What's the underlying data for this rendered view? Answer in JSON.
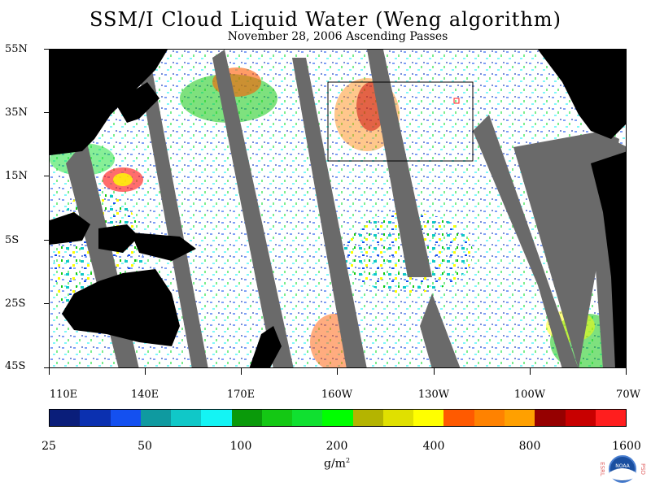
{
  "title": "SSM/I Cloud Liquid Water (Weng algorithm)",
  "subtitle": "November 28, 2006  Ascending Passes",
  "lat_labels": [
    "55N",
    "35N",
    "15N",
    "5S",
    "25S",
    "45S"
  ],
  "lon_labels": [
    "110E",
    "140E",
    "170E",
    "160W",
    "130W",
    "100W",
    "70W"
  ],
  "colorbar": {
    "colors": [
      "#0a1e7a",
      "#0b30b0",
      "#1450f0",
      "#0f9aa0",
      "#10c8c8",
      "#14f4f4",
      "#0a9a0a",
      "#14c814",
      "#10e030",
      "#00ff00",
      "#b4b400",
      "#e0e000",
      "#ffff00",
      "#ff5a00",
      "#ff8200",
      "#ffa000",
      "#960000",
      "#c80000",
      "#ff1e1e"
    ],
    "labels": [
      "25",
      "50",
      "100",
      "200",
      "400",
      "800",
      "1600"
    ],
    "units": "g/m",
    "units_sup": "2"
  },
  "logo": {
    "left_letters": "ESRL",
    "right_letters": "PSD",
    "center_text": "NOAA"
  },
  "colors": {
    "land": "#000000",
    "no_data": "#6a6a6a",
    "ocean_clear": "#ffffff"
  }
}
